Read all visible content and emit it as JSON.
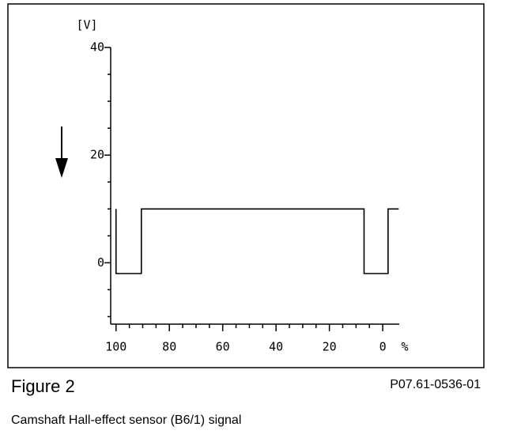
{
  "chart_data": {
    "type": "line",
    "y_label": "[V]",
    "x_label": "%",
    "figure_label": "Figure 2",
    "reference": "P07.61-0536-01",
    "caption": "Camshaft Hall-effect sensor (B6/1) signal",
    "x": [
      100,
      100,
      90.5,
      90.5,
      7,
      7,
      -2,
      -2,
      -6
    ],
    "series": [
      {
        "color": "#000000",
        "values": [
          10,
          -2,
          -2,
          10,
          10,
          -2,
          -2,
          10,
          10
        ]
      }
    ],
    "xlim": [
      102,
      -6.2
    ],
    "ylim": [
      -11.4,
      40
    ],
    "xticks": [
      100,
      80,
      60,
      40,
      20,
      0
    ],
    "xminorticks": [
      95,
      90,
      85,
      75,
      70,
      65,
      55,
      50,
      45,
      35,
      30,
      25,
      15,
      10,
      5
    ],
    "yticks": [
      40,
      20,
      0
    ],
    "yminorticks": [
      35,
      30,
      25,
      15,
      10,
      5,
      -5,
      -10
    ]
  }
}
